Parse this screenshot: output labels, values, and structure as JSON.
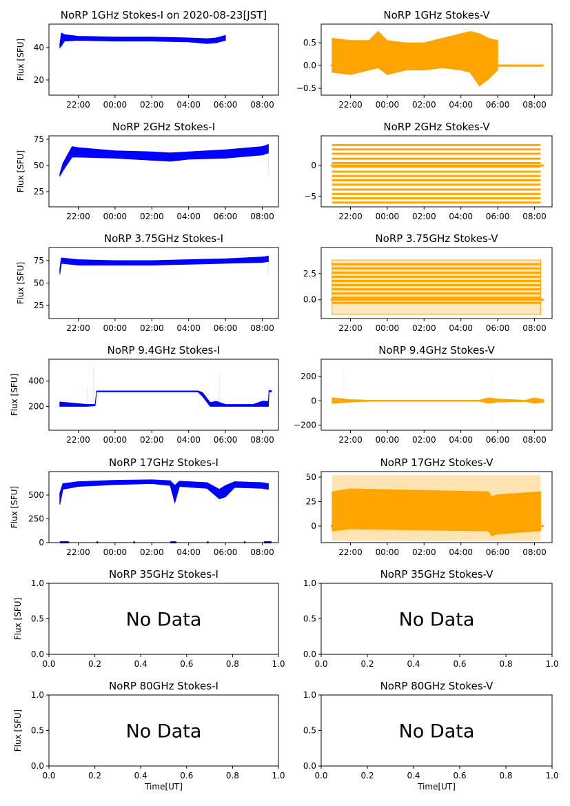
{
  "chart_data": [
    {
      "id": "1ghz-i",
      "type": "scatter",
      "title": "NoRP 1GHz Stokes-I on 2020-08-23[JST]",
      "ylabel": "Flux [SFU]",
      "xlabel": "",
      "color": "#0000ff",
      "ylim": [
        10.6,
        54.5
      ],
      "yticks": [
        "20",
        "40"
      ],
      "xticks": [
        "22:00",
        "00:00",
        "02:00",
        "04:00",
        "06:00",
        "08:00"
      ],
      "band": [
        [
          "21:00",
          40,
          42
        ],
        [
          "21:05",
          41,
          49
        ],
        [
          "21:15",
          44,
          48
        ],
        [
          "22:00",
          44.5,
          47
        ],
        [
          "00:00",
          44,
          46.5
        ],
        [
          "02:00",
          44,
          46.5
        ],
        [
          "04:00",
          43.5,
          46
        ],
        [
          "05:00",
          42.5,
          45.5
        ],
        [
          "05:30",
          43,
          46
        ],
        [
          "06:00",
          44.5,
          47.5
        ]
      ]
    },
    {
      "id": "1ghz-v",
      "type": "scatter",
      "title": "NoRP 1GHz Stokes-V",
      "ylabel": "",
      "xlabel": "",
      "color": "#ffa500",
      "ylim": [
        -0.65,
        0.91
      ],
      "yticks": [
        "−0.5",
        "0.0",
        "0.5"
      ],
      "xticks": [
        "22:00",
        "00:00",
        "02:00",
        "04:00",
        "06:00",
        "08:00"
      ],
      "band": [
        [
          "21:00",
          -0.15,
          0.6
        ],
        [
          "22:00",
          -0.2,
          0.55
        ],
        [
          "23:00",
          -0.1,
          0.55
        ],
        [
          "23:30",
          -0.05,
          0.75
        ],
        [
          "00:00",
          -0.2,
          0.55
        ],
        [
          "01:00",
          -0.1,
          0.5
        ],
        [
          "02:00",
          -0.1,
          0.5
        ],
        [
          "03:00",
          -0.05,
          0.6
        ],
        [
          "04:00",
          -0.1,
          0.7
        ],
        [
          "04:30",
          -0.15,
          0.75
        ],
        [
          "05:00",
          -0.45,
          0.7
        ],
        [
          "05:30",
          -0.3,
          0.6
        ],
        [
          "06:00",
          -0.1,
          0.55
        ]
      ],
      "lines": [
        {
          "y": 0,
          "from": "20:55",
          "to": "08:30"
        }
      ]
    },
    {
      "id": "2ghz-i",
      "type": "scatter",
      "title": "NoRP 2GHz Stokes-I",
      "ylabel": "Flux [SFU]",
      "xlabel": "",
      "color": "#0000ff",
      "ylim": [
        10.5,
        78.3
      ],
      "yticks": [
        "25",
        "50",
        "75"
      ],
      "xticks": [
        "22:00",
        "00:00",
        "02:00",
        "04:00",
        "06:00",
        "08:00"
      ],
      "band": [
        [
          "21:00",
          40,
          42
        ],
        [
          "21:10",
          45,
          52
        ],
        [
          "21:40",
          58,
          68
        ],
        [
          "22:00",
          58,
          67
        ],
        [
          "00:00",
          57,
          64
        ],
        [
          "02:00",
          55,
          63
        ],
        [
          "03:00",
          54,
          62
        ],
        [
          "04:00",
          56,
          63
        ],
        [
          "06:00",
          57,
          65
        ],
        [
          "08:00",
          60,
          68
        ],
        [
          "08:20",
          62,
          70
        ]
      ],
      "spikes": [
        [
          "08:20",
          42,
          62
        ]
      ]
    },
    {
      "id": "2ghz-v",
      "type": "scatter",
      "title": "NoRP 2GHz Stokes-V",
      "ylabel": "",
      "xlabel": "",
      "color": "#ffa500",
      "ylim": [
        -6.7,
        4.8
      ],
      "yticks": [
        "−5",
        "0"
      ],
      "xticks": [
        "22:00",
        "00:00",
        "02:00",
        "04:00",
        "06:00",
        "08:00"
      ],
      "levels": {
        "from": "21:00",
        "to": "08:20",
        "values": [
          3.3,
          2.6,
          1.9,
          1.1,
          0.4,
          -0.2,
          -1.0,
          -1.7,
          -2.4,
          -3.1,
          -3.9,
          -4.6,
          -5.3,
          -6.0
        ]
      },
      "lines": [
        {
          "y": 0,
          "from": "20:55",
          "to": "08:30"
        }
      ]
    },
    {
      "id": "3.75ghz-i",
      "type": "scatter",
      "title": "NoRP 3.75GHz Stokes-I",
      "ylabel": "Flux [SFU]",
      "xlabel": "",
      "color": "#0000ff",
      "ylim": [
        10.4,
        89.6
      ],
      "yticks": [
        "25",
        "50",
        "75"
      ],
      "xticks": [
        "22:00",
        "00:00",
        "02:00",
        "04:00",
        "06:00",
        "08:00"
      ],
      "band": [
        [
          "21:00",
          60,
          66
        ],
        [
          "21:05",
          72,
          78
        ],
        [
          "22:00",
          70,
          76
        ],
        [
          "00:00",
          70,
          75
        ],
        [
          "02:00",
          70,
          75
        ],
        [
          "04:00",
          71,
          76
        ],
        [
          "06:00",
          72,
          77
        ],
        [
          "08:00",
          73,
          79
        ],
        [
          "08:20",
          74,
          80
        ]
      ],
      "spikes": [
        [
          "08:20",
          60,
          75
        ]
      ]
    },
    {
      "id": "3.75ghz-v",
      "type": "scatter",
      "title": "NoRP 3.75GHz Stokes-V",
      "ylabel": "",
      "xlabel": "",
      "color": "#ffa500",
      "ylim": [
        -1.8,
        5.0
      ],
      "yticks": [
        "0.0",
        "2.5"
      ],
      "xticks": [
        "22:00",
        "00:00",
        "02:00",
        "04:00",
        "06:00",
        "08:00"
      ],
      "band": [
        [
          "21:00",
          -1.4,
          3.8
        ],
        [
          "08:20",
          -1.4,
          3.8
        ]
      ],
      "levels": {
        "from": "21:00",
        "to": "08:20",
        "values": [
          3.4,
          3.0,
          2.6,
          2.2,
          1.8,
          1.4,
          1.0,
          0.6,
          0.2,
          -0.3
        ]
      },
      "lines": [
        {
          "y": 0,
          "from": "20:55",
          "to": "08:30"
        }
      ]
    },
    {
      "id": "9.4ghz-i",
      "type": "scatter",
      "title": "NoRP 9.4GHz Stokes-I",
      "ylabel": "Flux [SFU]",
      "xlabel": "",
      "color": "#0000ff",
      "ylim": [
        11,
        573
      ],
      "yticks": [
        "200",
        "400"
      ],
      "xticks": [
        "22:00",
        "00:00",
        "02:00",
        "04:00",
        "06:00",
        "08:00"
      ],
      "band": [
        [
          "21:00",
          200,
          235
        ],
        [
          "22:30",
          200,
          215
        ],
        [
          "22:55",
          205,
          215
        ],
        [
          "23:00",
          315,
          322
        ],
        [
          "04:30",
          315,
          322
        ],
        [
          "04:45",
          280,
          310
        ],
        [
          "05:10",
          200,
          230
        ],
        [
          "05:30",
          200,
          240
        ],
        [
          "06:00",
          200,
          215
        ],
        [
          "07:30",
          200,
          215
        ],
        [
          "08:00",
          200,
          240
        ],
        [
          "08:20",
          200,
          240
        ],
        [
          "08:22",
          315,
          325
        ],
        [
          "08:30",
          315,
          325
        ]
      ],
      "spikes": [
        [
          "22:50",
          200,
          515
        ],
        [
          "05:40",
          200,
          450
        ],
        [
          "22:30",
          200,
          360
        ]
      ]
    },
    {
      "id": "9.4ghz-v",
      "type": "scatter",
      "title": "NoRP 9.4GHz Stokes-V",
      "ylabel": "",
      "xlabel": "",
      "color": "#ffa500",
      "ylim": [
        -242,
        343
      ],
      "yticks": [
        "−200",
        "0",
        "200"
      ],
      "xticks": [
        "22:00",
        "00:00",
        "02:00",
        "04:00",
        "06:00",
        "08:00"
      ],
      "band": [
        [
          "21:00",
          -20,
          25
        ],
        [
          "22:00",
          -10,
          10
        ],
        [
          "23:00",
          -3,
          5
        ],
        [
          "05:00",
          -3,
          5
        ],
        [
          "05:30",
          -20,
          25
        ],
        [
          "06:00",
          -10,
          15
        ],
        [
          "07:30",
          -5,
          5
        ],
        [
          "08:00",
          -20,
          25
        ],
        [
          "08:30",
          -10,
          10
        ]
      ],
      "spikes": [
        [
          "21:35",
          -80,
          270
        ],
        [
          "05:40",
          -200,
          200
        ]
      ]
    },
    {
      "id": "17ghz-i",
      "type": "scatter",
      "title": "NoRP 17GHz Stokes-I",
      "ylabel": "Flux [SFU]",
      "xlabel": "",
      "color": "#0000ff",
      "ylim": [
        0,
        746
      ],
      "yticks": [
        "0",
        "250",
        "500"
      ],
      "xticks": [
        "22:00",
        "00:00",
        "02:00",
        "04:00",
        "06:00",
        "08:00"
      ],
      "band": [
        [
          "21:00",
          400,
          520
        ],
        [
          "21:10",
          560,
          620
        ],
        [
          "22:00",
          590,
          640
        ],
        [
          "00:00",
          610,
          655
        ],
        [
          "02:00",
          620,
          660
        ],
        [
          "03:00",
          600,
          650
        ],
        [
          "03:15",
          420,
          600
        ],
        [
          "03:30",
          590,
          645
        ],
        [
          "05:00",
          570,
          630
        ],
        [
          "05:40",
          460,
          560
        ],
        [
          "06:00",
          480,
          600
        ],
        [
          "06:30",
          580,
          640
        ],
        [
          "08:00",
          570,
          630
        ],
        [
          "08:20",
          560,
          620
        ]
      ],
      "lines": [
        {
          "y": 3,
          "from": "21:00",
          "to": "21:30"
        },
        {
          "y": 3,
          "from": "23:00",
          "to": "23:05"
        },
        {
          "y": 3,
          "from": "01:00",
          "to": "01:05"
        },
        {
          "y": 3,
          "from": "03:00",
          "to": "03:20"
        },
        {
          "y": 3,
          "from": "05:00",
          "to": "05:05"
        },
        {
          "y": 3,
          "from": "07:00",
          "to": "07:05"
        },
        {
          "y": 3,
          "from": "08:05",
          "to": "08:30"
        }
      ]
    },
    {
      "id": "17ghz-v",
      "type": "scatter",
      "title": "NoRP 17GHz Stokes-V",
      "ylabel": "",
      "xlabel": "",
      "color": "#ffa500",
      "ylim": [
        -16.9,
        55.6
      ],
      "yticks": [
        "0",
        "25",
        "50"
      ],
      "xticks": [
        "22:00",
        "00:00",
        "02:00",
        "04:00",
        "06:00",
        "08:00"
      ],
      "band": [
        [
          "21:00",
          -5,
          35
        ],
        [
          "22:00",
          -3,
          38
        ],
        [
          "05:30",
          -5,
          35
        ],
        [
          "05:40",
          -10,
          30
        ],
        [
          "06:00",
          -8,
          32
        ],
        [
          "08:20",
          -5,
          35
        ]
      ],
      "haze": [
        [
          "21:00",
          -15,
          52
        ],
        [
          "08:20",
          -15,
          52
        ]
      ],
      "lines": [
        {
          "y": 0,
          "from": "20:55",
          "to": "08:30"
        }
      ]
    },
    {
      "id": "35ghz-i",
      "type": "empty",
      "title": "NoRP 35GHz Stokes-I",
      "ylabel": "Flux [SFU]",
      "xlabel": "",
      "message": "No Data",
      "ylim": [
        0,
        1
      ],
      "xlim": [
        0,
        1
      ],
      "yticks": [
        "0.0",
        "0.5",
        "1.0"
      ],
      "xticks": [
        "0.0",
        "0.2",
        "0.4",
        "0.6",
        "0.8",
        "1.0"
      ]
    },
    {
      "id": "35ghz-v",
      "type": "empty",
      "title": "NoRP 35GHz Stokes-V",
      "ylabel": "",
      "xlabel": "",
      "message": "No Data",
      "ylim": [
        0,
        1
      ],
      "xlim": [
        0,
        1
      ],
      "yticks": [
        "0.0",
        "0.5",
        "1.0"
      ],
      "xticks": [
        "0.0",
        "0.2",
        "0.4",
        "0.6",
        "0.8",
        "1.0"
      ]
    },
    {
      "id": "80ghz-i",
      "type": "empty",
      "title": "NoRP 80GHz Stokes-I",
      "ylabel": "Flux [SFU]",
      "xlabel": "Time[UT]",
      "message": "No Data",
      "ylim": [
        0,
        1
      ],
      "xlim": [
        0,
        1
      ],
      "yticks": [
        "0.0",
        "0.5",
        "1.0"
      ],
      "xticks": [
        "0.0",
        "0.2",
        "0.4",
        "0.6",
        "0.8",
        "1.0"
      ]
    },
    {
      "id": "80ghz-v",
      "type": "empty",
      "title": "NoRP 80GHz Stokes-V",
      "ylabel": "",
      "xlabel": "Time[UT]",
      "message": "No Data",
      "ylim": [
        0,
        1
      ],
      "xlim": [
        0,
        1
      ],
      "yticks": [
        "0.0",
        "0.5",
        "1.0"
      ],
      "xticks": [
        "0.0",
        "0.2",
        "0.4",
        "0.6",
        "0.8",
        "1.0"
      ]
    }
  ]
}
